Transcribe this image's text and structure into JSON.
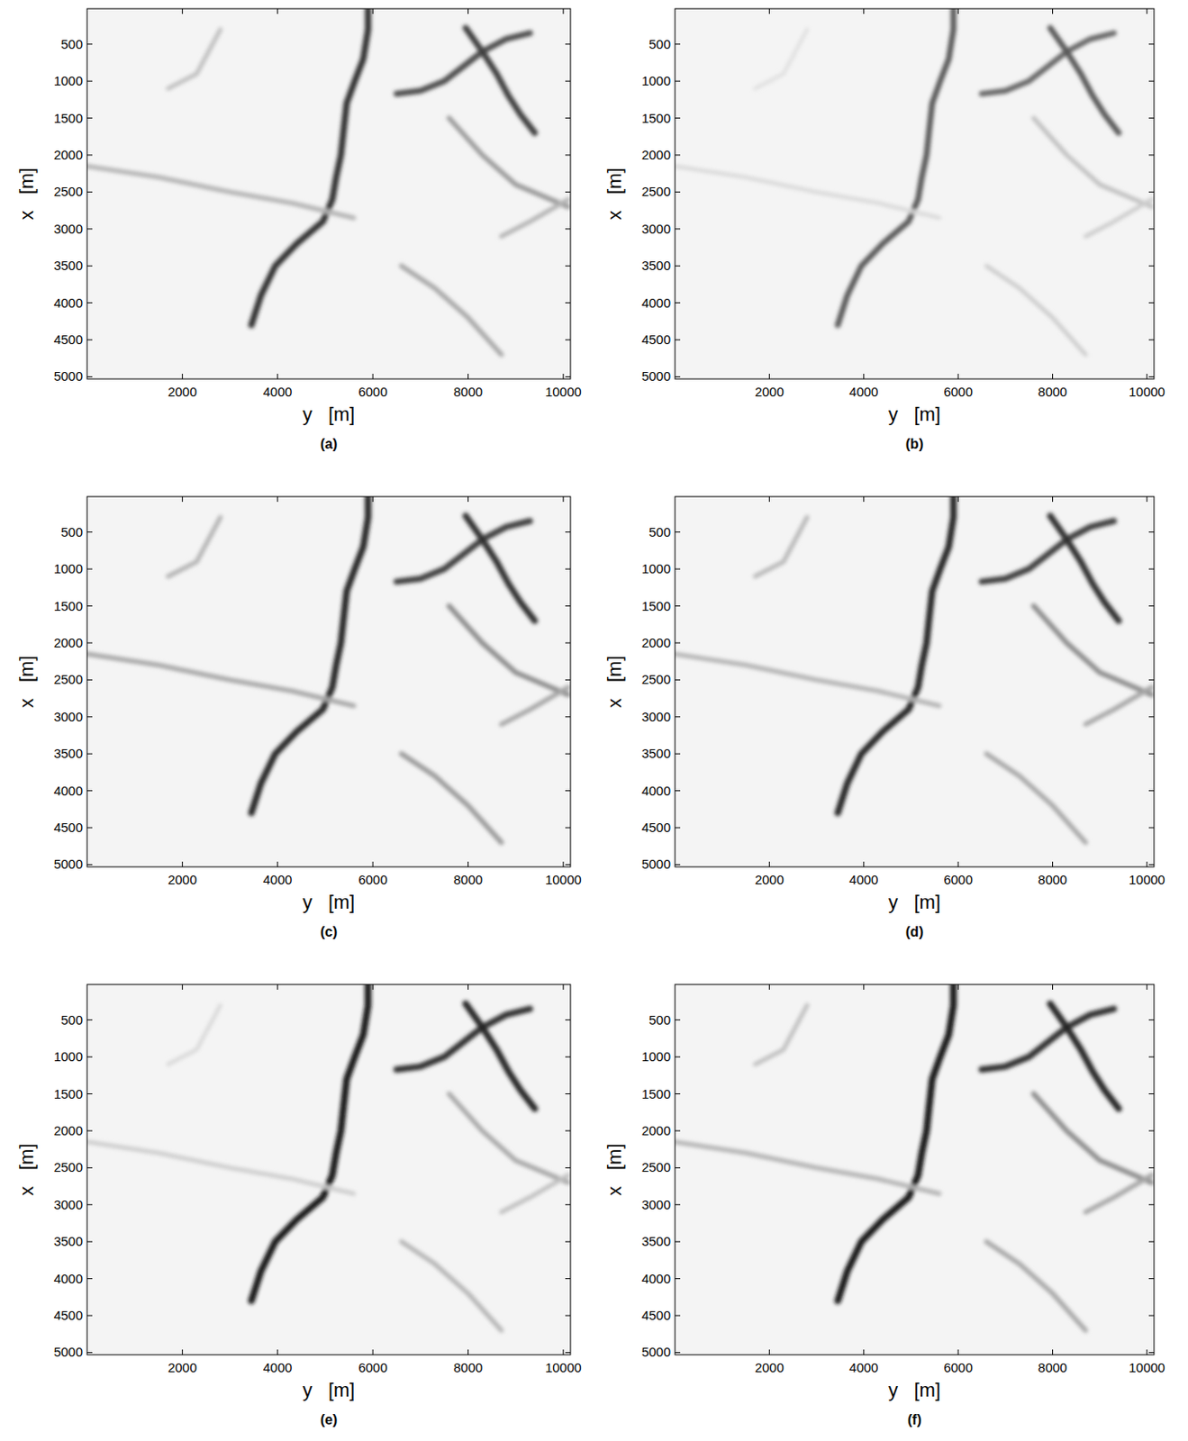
{
  "chart_data": [
    {
      "type": "image",
      "panel": "(a)",
      "xlabel": "y   [m]",
      "ylabel": "x   [m]",
      "xlim": [
        0,
        10150
      ],
      "ylim": [
        20,
        5030
      ],
      "xticks": [
        2000,
        4000,
        6000,
        8000,
        10000
      ],
      "yticks": [
        500,
        1000,
        1500,
        2000,
        2500,
        3000,
        3500,
        4000,
        4500,
        5000
      ],
      "levels": [
        0.8,
        0.7,
        0.75,
        0.3,
        0.4,
        0.35,
        0.3,
        0.25
      ]
    },
    {
      "type": "image",
      "panel": "(b)",
      "xlabel": "y   [m]",
      "ylabel": "x   [m]",
      "xlim": [
        0,
        10150
      ],
      "ylim": [
        20,
        5030
      ],
      "xticks": [
        2000,
        4000,
        6000,
        8000,
        10000
      ],
      "yticks": [
        500,
        1000,
        1500,
        2000,
        2500,
        3000,
        3500,
        4000,
        4500,
        5000
      ],
      "levels": [
        0.65,
        0.6,
        0.65,
        0.15,
        0.25,
        0.2,
        0.2,
        0.12
      ]
    },
    {
      "type": "image",
      "panel": "(c)",
      "xlabel": "y   [m]",
      "ylabel": "x   [m]",
      "xlim": [
        0,
        10150
      ],
      "ylim": [
        20,
        5030
      ],
      "xticks": [
        2000,
        4000,
        6000,
        8000,
        10000
      ],
      "yticks": [
        500,
        1000,
        1500,
        2000,
        2500,
        3000,
        3500,
        4000,
        4500,
        5000
      ],
      "levels": [
        0.85,
        0.75,
        0.8,
        0.35,
        0.45,
        0.4,
        0.35,
        0.3
      ]
    },
    {
      "type": "image",
      "panel": "(d)",
      "xlabel": "y   [m]",
      "ylabel": "x   [m]",
      "xlim": [
        0,
        10150
      ],
      "ylim": [
        20,
        5030
      ],
      "xticks": [
        2000,
        4000,
        6000,
        8000,
        10000
      ],
      "yticks": [
        500,
        1000,
        1500,
        2000,
        2500,
        3000,
        3500,
        4000,
        4500,
        5000
      ],
      "levels": [
        0.85,
        0.75,
        0.8,
        0.3,
        0.45,
        0.35,
        0.35,
        0.28
      ]
    },
    {
      "type": "image",
      "panel": "(e)",
      "xlabel": "y   [m]",
      "ylabel": "x   [m]",
      "xlim": [
        0,
        10150
      ],
      "ylim": [
        20,
        5030
      ],
      "xticks": [
        2000,
        4000,
        6000,
        8000,
        10000
      ],
      "yticks": [
        500,
        1000,
        1500,
        2000,
        2500,
        3000,
        3500,
        4000,
        4500,
        5000
      ],
      "levels": [
        0.9,
        0.8,
        0.85,
        0.2,
        0.35,
        0.3,
        0.25,
        0.15
      ]
    },
    {
      "type": "image",
      "panel": "(f)",
      "xlabel": "y   [m]",
      "ylabel": "x   [m]",
      "xlim": [
        0,
        10150
      ],
      "ylim": [
        20,
        5030
      ],
      "xticks": [
        2000,
        4000,
        6000,
        8000,
        10000
      ],
      "yticks": [
        500,
        1000,
        1500,
        2000,
        2500,
        3000,
        3500,
        4000,
        4500,
        5000
      ],
      "levels": [
        0.9,
        0.8,
        0.85,
        0.3,
        0.45,
        0.35,
        0.35,
        0.25
      ]
    }
  ],
  "features": [
    {
      "x": [
        20,
        300,
        700,
        1000,
        1300,
        1700,
        2000,
        2300,
        2600,
        2900,
        3200,
        3500,
        3900,
        4300
      ],
      "y": [
        5900,
        5900,
        5800,
        5620,
        5450,
        5380,
        5330,
        5230,
        5150,
        4950,
        4400,
        3950,
        3650,
        3450
      ]
    },
    {
      "x": [
        1170,
        1130,
        1000,
        800,
        600,
        430,
        350
      ],
      "y": [
        6500,
        7000,
        7500,
        7900,
        8300,
        8800,
        9300
      ]
    },
    {
      "x": [
        280,
        600,
        900,
        1200,
        1450,
        1700
      ],
      "y": [
        7950,
        8300,
        8600,
        8850,
        9100,
        9400
      ]
    },
    {
      "x": [
        2150,
        2300,
        2500,
        2650,
        2850
      ],
      "y": [
        0,
        1500,
        3000,
        4300,
        5600
      ]
    },
    {
      "x": [
        1500,
        2000,
        2400,
        2700
      ],
      "y": [
        7600,
        8300,
        9000,
        10100
      ]
    },
    {
      "x": [
        3500,
        3800,
        4200,
        4700
      ],
      "y": [
        6600,
        7300,
        8000,
        8700
      ]
    },
    {
      "x": [
        2600,
        2900,
        3100
      ],
      "y": [
        10100,
        9300,
        8700
      ]
    },
    {
      "x": [
        300,
        900,
        1100
      ],
      "y": [
        2800,
        2300,
        1700
      ]
    }
  ]
}
